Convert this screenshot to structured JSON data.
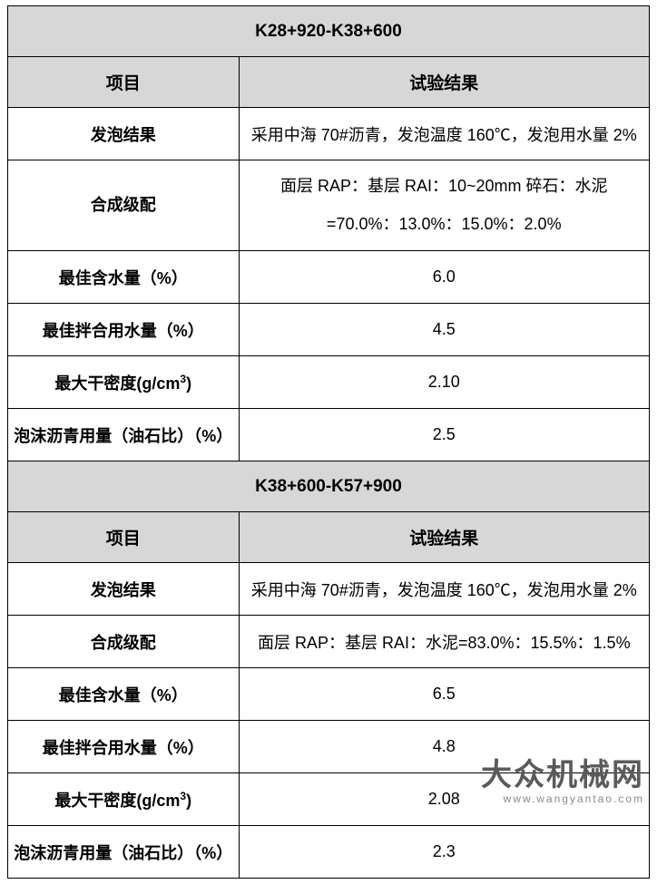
{
  "sections": [
    {
      "title": "K28+920-K38+600",
      "headers": {
        "left": "项目",
        "right": "试验结果"
      },
      "rows": [
        {
          "label": "发泡结果",
          "value": "采用中海 70#沥青，发泡温度 160℃，发泡用水量 2%",
          "tall": false
        },
        {
          "label": "合成级配",
          "value_line1": "面层 RAP：基层 RAI：10~20mm 碎石：水泥",
          "value_line2": "=70.0%：13.0%：15.0%：2.0%",
          "tall": true
        },
        {
          "label": "最佳含水量（%）",
          "value": "6.0",
          "tall": false
        },
        {
          "label": "最佳拌合用水量（%）",
          "value": "4.5",
          "tall": false
        },
        {
          "label_html": "最大干密度(g/cm<span class=\"sup\">3</span>)",
          "value": "2.10",
          "tall": false
        },
        {
          "label": "泡沫沥青用量（油石比）（%）",
          "value": "2.5",
          "tall": false
        }
      ]
    },
    {
      "title": "K38+600-K57+900",
      "headers": {
        "left": "项目",
        "right": "试验结果"
      },
      "rows": [
        {
          "label": "发泡结果",
          "value": "采用中海 70#沥青，发泡温度 160℃，发泡用水量 2%",
          "tall": false
        },
        {
          "label": "合成级配",
          "value": "面层 RAP：基层 RAI：水泥=83.0%：15.5%：1.5%",
          "tall": false
        },
        {
          "label": "最佳含水量（%）",
          "value": "6.5",
          "tall": false
        },
        {
          "label": "最佳拌合用水量（%）",
          "value": "4.8",
          "tall": false
        },
        {
          "label_html": "最大干密度(g/cm<span class=\"sup\">3</span>)",
          "value": "2.08",
          "tall": false
        },
        {
          "label": "泡沫沥青用量（油石比）（%）",
          "value": "2.3",
          "tall": false
        }
      ]
    }
  ],
  "watermark": {
    "big": "大众机械网",
    "small": "www.wangyantao.com"
  },
  "table_style": {
    "border_color": "#000000",
    "header_bg": "#d7d7d7",
    "body_bg": "#ffffff",
    "text_color": "#000000",
    "font_size_header": 19,
    "font_size_body": 18,
    "col_widths_pct": [
      36,
      64
    ]
  }
}
